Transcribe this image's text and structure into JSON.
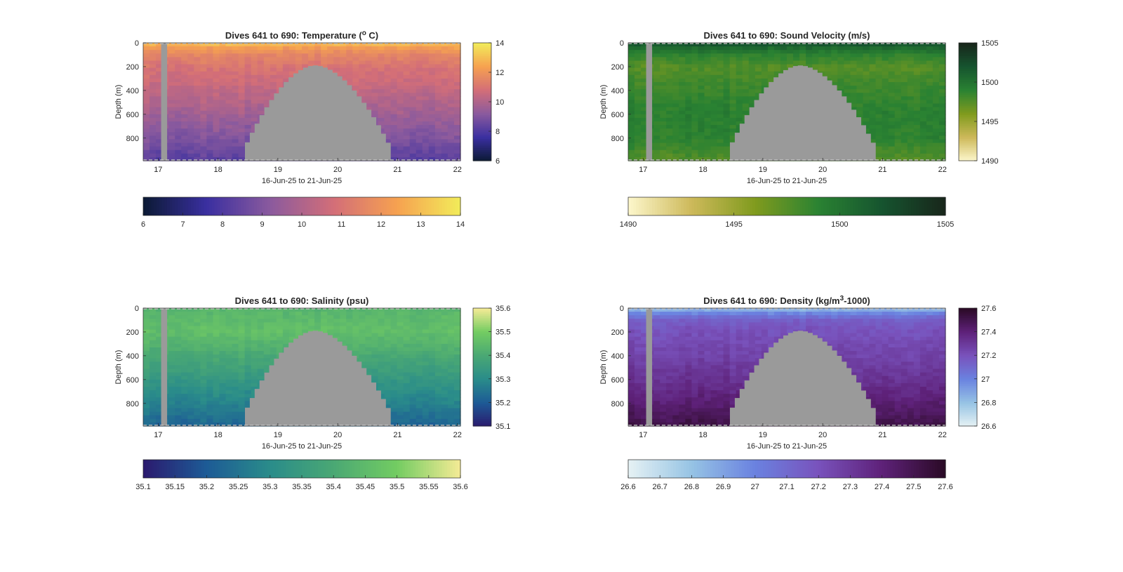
{
  "figure": {
    "background": "#ffffff",
    "mask_color": "#9a9a9a"
  },
  "chart_data": [
    {
      "type": "heatmap",
      "variable": "temperature",
      "title_main": "Dives 641 to 690: Temperature (",
      "title_sup": "o",
      "title_tail": " C)",
      "xlabel": "16-Jun-25 to 21-Jun-25",
      "ylabel": "Depth (m)",
      "xlim": [
        16.75,
        22.05
      ],
      "ylim": [
        0,
        990
      ],
      "y_reversed": true,
      "xticks": [
        17,
        18,
        19,
        20,
        21,
        22
      ],
      "yticks": [
        0,
        200,
        400,
        600,
        800
      ],
      "clim": [
        6,
        14
      ],
      "colorbar_side_ticks": [
        6,
        8,
        10,
        12,
        14
      ],
      "colorbar_bottom_ticks": [
        6,
        7,
        8,
        9,
        10,
        11,
        12,
        13,
        14
      ],
      "colormap": [
        "#0b1a34",
        "#3a2fa0",
        "#8a5a9e",
        "#d36e78",
        "#f6a150",
        "#f2ec5a"
      ],
      "profile_depths": [
        0,
        30,
        100,
        200,
        400,
        600,
        800,
        990
      ],
      "profile_values": [
        13.2,
        12.4,
        11.6,
        11.0,
        10.4,
        9.7,
        9.0,
        8.2
      ],
      "gap_x": [
        17.05,
        17.15
      ],
      "seamount_base_x": [
        18.45,
        20.88
      ],
      "seamount_peak_x": 19.62,
      "seamount_top_depth": 190,
      "seamount_base_depth": 990
    },
    {
      "type": "heatmap",
      "variable": "sound_velocity",
      "title_main": "Dives 641 to 690: Sound Velocity (m/s)",
      "title_sup": "",
      "title_tail": "",
      "xlabel": "16-Jun-25 to 21-Jun-25",
      "ylabel": "Depth (m)",
      "xlim": [
        16.75,
        22.05
      ],
      "ylim": [
        0,
        990
      ],
      "y_reversed": true,
      "xticks": [
        17,
        18,
        19,
        20,
        21,
        22
      ],
      "yticks": [
        0,
        200,
        400,
        600,
        800
      ],
      "clim": [
        1490,
        1505
      ],
      "colorbar_side_ticks": [
        1490,
        1495,
        1500,
        1505
      ],
      "colorbar_bottom_ticks": [
        1490,
        1495,
        1500,
        1505
      ],
      "colormap": [
        "#fdf7cc",
        "#cdb95a",
        "#809b1e",
        "#2a8232",
        "#16542f",
        "#18261b"
      ],
      "profile_depths": [
        0,
        30,
        100,
        200,
        400,
        600,
        800,
        990
      ],
      "profile_values": [
        1502.5,
        1501.0,
        1499.0,
        1497.5,
        1498.5,
        1499.2,
        1499.0,
        1497.5
      ],
      "gap_x": [
        17.05,
        17.15
      ],
      "seamount_base_x": [
        18.45,
        20.88
      ],
      "seamount_peak_x": 19.62,
      "seamount_top_depth": 190,
      "seamount_base_depth": 990
    },
    {
      "type": "heatmap",
      "variable": "salinity",
      "title_main": "Dives 641 to 690: Salinity (psu)",
      "title_sup": "",
      "title_tail": "",
      "xlabel": "16-Jun-25 to 21-Jun-25",
      "ylabel": "Depth (m)",
      "xlim": [
        16.75,
        22.05
      ],
      "ylim": [
        0,
        990
      ],
      "y_reversed": true,
      "xticks": [
        17,
        18,
        19,
        20,
        21,
        22
      ],
      "yticks": [
        0,
        200,
        400,
        600,
        800
      ],
      "clim": [
        35.1,
        35.6
      ],
      "colorbar_side_ticks": [
        35.1,
        35.2,
        35.3,
        35.4,
        35.5,
        35.6
      ],
      "colorbar_bottom_ticks": [
        35.1,
        35.15,
        35.2,
        35.25,
        35.3,
        35.35,
        35.4,
        35.45,
        35.5,
        35.55,
        35.6
      ],
      "colormap": [
        "#2b1a6e",
        "#1d5b96",
        "#2a8c8a",
        "#4aa874",
        "#73cc62",
        "#f5eb95"
      ],
      "profile_depths": [
        0,
        30,
        100,
        200,
        400,
        600,
        800,
        990
      ],
      "profile_values": [
        35.43,
        35.44,
        35.45,
        35.46,
        35.4,
        35.34,
        35.28,
        35.22
      ],
      "gap_x": [
        17.05,
        17.15
      ],
      "seamount_base_x": [
        18.45,
        20.88
      ],
      "seamount_peak_x": 19.62,
      "seamount_top_depth": 190,
      "seamount_base_depth": 990
    },
    {
      "type": "heatmap",
      "variable": "density",
      "title_main": "Dives 641 to 690: Density (kg/m",
      "title_sup": "3",
      "title_tail": "-1000)",
      "xlabel": "16-Jun-25 to 21-Jun-25",
      "ylabel": "Depth (m)",
      "xlim": [
        16.75,
        22.05
      ],
      "ylim": [
        0,
        990
      ],
      "y_reversed": true,
      "xticks": [
        17,
        18,
        19,
        20,
        21,
        22
      ],
      "yticks": [
        0,
        200,
        400,
        600,
        800
      ],
      "clim": [
        26.6,
        27.6
      ],
      "colorbar_side_ticks": [
        26.6,
        26.8,
        27,
        27.2,
        27.4,
        27.6
      ],
      "colorbar_bottom_ticks": [
        26.6,
        26.7,
        26.8,
        26.9,
        27,
        27.1,
        27.2,
        27.3,
        27.4,
        27.5,
        27.6
      ],
      "colormap": [
        "#e6f2f4",
        "#96c3e4",
        "#6a82e0",
        "#7952bc",
        "#5e2179",
        "#2a0a25"
      ],
      "profile_depths": [
        0,
        30,
        100,
        200,
        400,
        600,
        800,
        990
      ],
      "profile_values": [
        26.78,
        26.95,
        27.15,
        27.2,
        27.26,
        27.33,
        27.42,
        27.52
      ],
      "gap_x": [
        17.05,
        17.15
      ],
      "seamount_base_x": [
        18.45,
        20.88
      ],
      "seamount_peak_x": 19.62,
      "seamount_top_depth": 190,
      "seamount_base_depth": 990
    }
  ]
}
